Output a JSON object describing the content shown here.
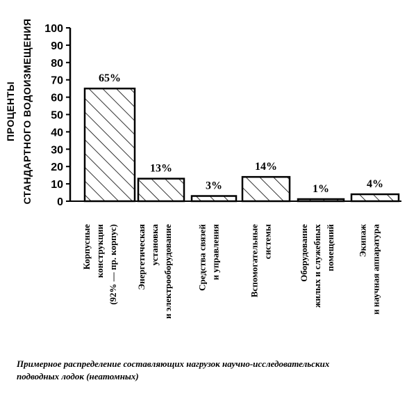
{
  "chart_data": {
    "type": "bar",
    "ylabel_lines": [
      "ПРОЦЕНТЫ",
      "СТАНДАРТНОГО ВОДОИЗМЕЩЕНИЯ"
    ],
    "ylim": [
      0,
      100
    ],
    "yticks": [
      0,
      10,
      20,
      30,
      40,
      50,
      60,
      70,
      80,
      90,
      100
    ],
    "grid": false,
    "bar_fill": "diagonal-hatch",
    "categories": [
      [
        "Корпусные",
        "конструкции",
        "(92% — пр. корпус)"
      ],
      [
        "Энергетическая",
        "установка",
        "и электрооборудование"
      ],
      [
        "Средства связей",
        "и управления"
      ],
      [
        "Вспомогательные",
        "системы"
      ],
      [
        "Оборудование",
        "жилых и служебных",
        "помещений"
      ],
      [
        "Экипаж",
        "и научная аппаратура"
      ]
    ],
    "values": [
      65,
      13,
      3,
      14,
      1,
      4
    ],
    "value_labels": [
      "65%",
      "13%",
      "3%",
      "14%",
      "1%",
      "4%"
    ],
    "caption_lines": [
      "Примерное распределение составляющих нагрузок научно-исследовательских",
      "подводных лодок (неатомных)"
    ]
  }
}
